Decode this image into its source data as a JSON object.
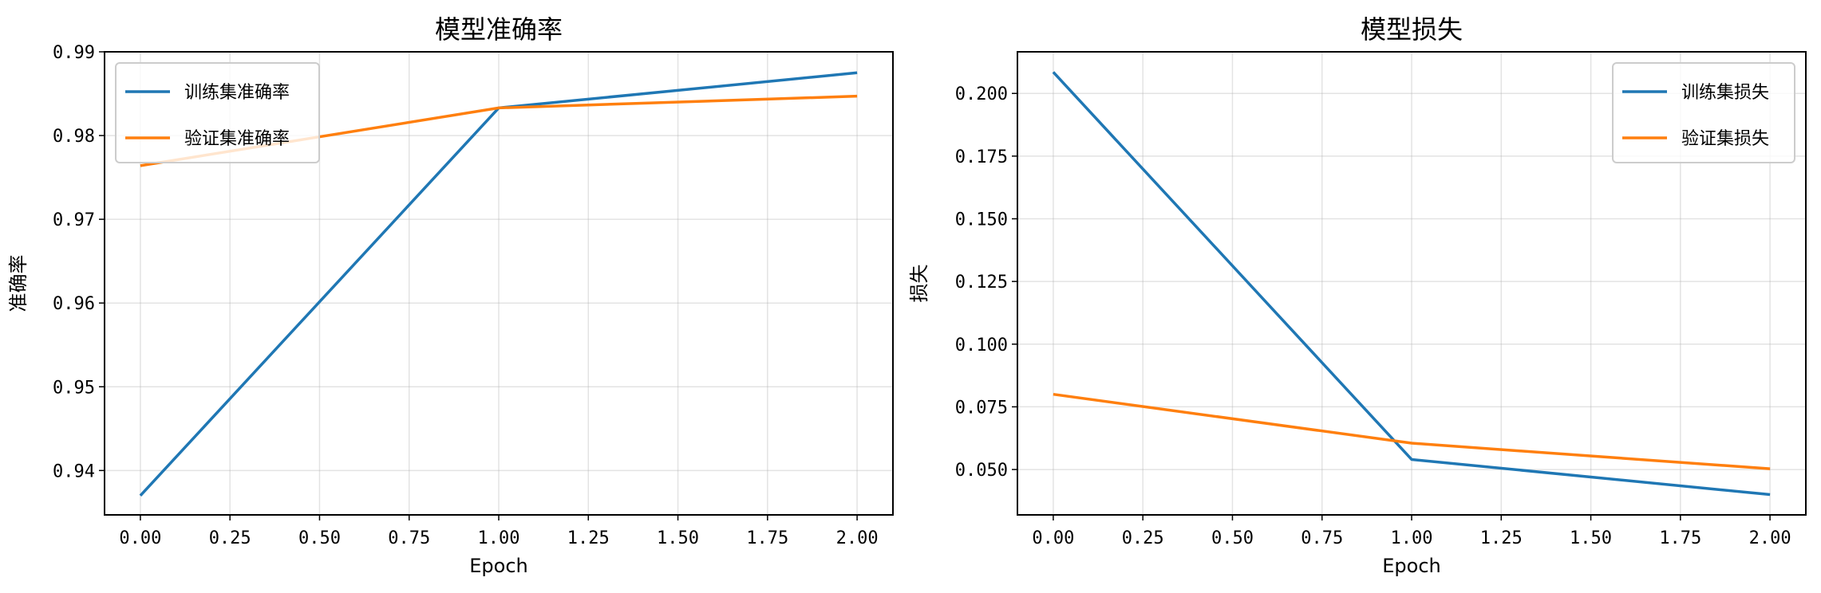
{
  "chart_data": [
    {
      "type": "line",
      "title": "模型准确率",
      "xlabel": "Epoch",
      "ylabel": "准确率",
      "x": [
        0,
        1,
        2
      ],
      "xlim": [
        -0.1,
        2.1
      ],
      "ylim": [
        0.9347,
        0.99
      ],
      "xticks": [
        0,
        0.25,
        0.5,
        0.75,
        1.0,
        1.25,
        1.5,
        1.75,
        2.0
      ],
      "xtick_labels": [
        "0.00",
        "0.25",
        "0.50",
        "0.75",
        "1.00",
        "1.25",
        "1.50",
        "1.75",
        "2.00"
      ],
      "yticks": [
        0.94,
        0.95,
        0.96,
        0.97,
        0.98,
        0.99
      ],
      "ytick_labels": [
        "0.94",
        "0.95",
        "0.96",
        "0.97",
        "0.98",
        "0.99"
      ],
      "grid": true,
      "legend_position": "top-left",
      "series": [
        {
          "name": "训练集准确率",
          "color": "#1f77b4",
          "values": [
            0.937,
            0.9833,
            0.9875
          ]
        },
        {
          "name": "验证集准确率",
          "color": "#ff7f0e",
          "values": [
            0.9764,
            0.9833,
            0.9847
          ]
        }
      ]
    },
    {
      "type": "line",
      "title": "模型损失",
      "xlabel": "Epoch",
      "ylabel": "损失",
      "x": [
        0,
        1,
        2
      ],
      "xlim": [
        -0.1,
        2.1
      ],
      "ylim": [
        0.0319,
        0.2166
      ],
      "xticks": [
        0,
        0.25,
        0.5,
        0.75,
        1.0,
        1.25,
        1.5,
        1.75,
        2.0
      ],
      "xtick_labels": [
        "0.00",
        "0.25",
        "0.50",
        "0.75",
        "1.00",
        "1.25",
        "1.50",
        "1.75",
        "2.00"
      ],
      "yticks": [
        0.05,
        0.075,
        0.1,
        0.125,
        0.15,
        0.175,
        0.2
      ],
      "ytick_labels": [
        "0.050",
        "0.075",
        "0.100",
        "0.125",
        "0.150",
        "0.175",
        "0.200"
      ],
      "grid": true,
      "legend_position": "top-right",
      "series": [
        {
          "name": "训练集损失",
          "color": "#1f77b4",
          "values": [
            0.2085,
            0.054,
            0.04
          ]
        },
        {
          "name": "验证集损失",
          "color": "#ff7f0e",
          "values": [
            0.08,
            0.0605,
            0.0503
          ]
        }
      ]
    }
  ]
}
